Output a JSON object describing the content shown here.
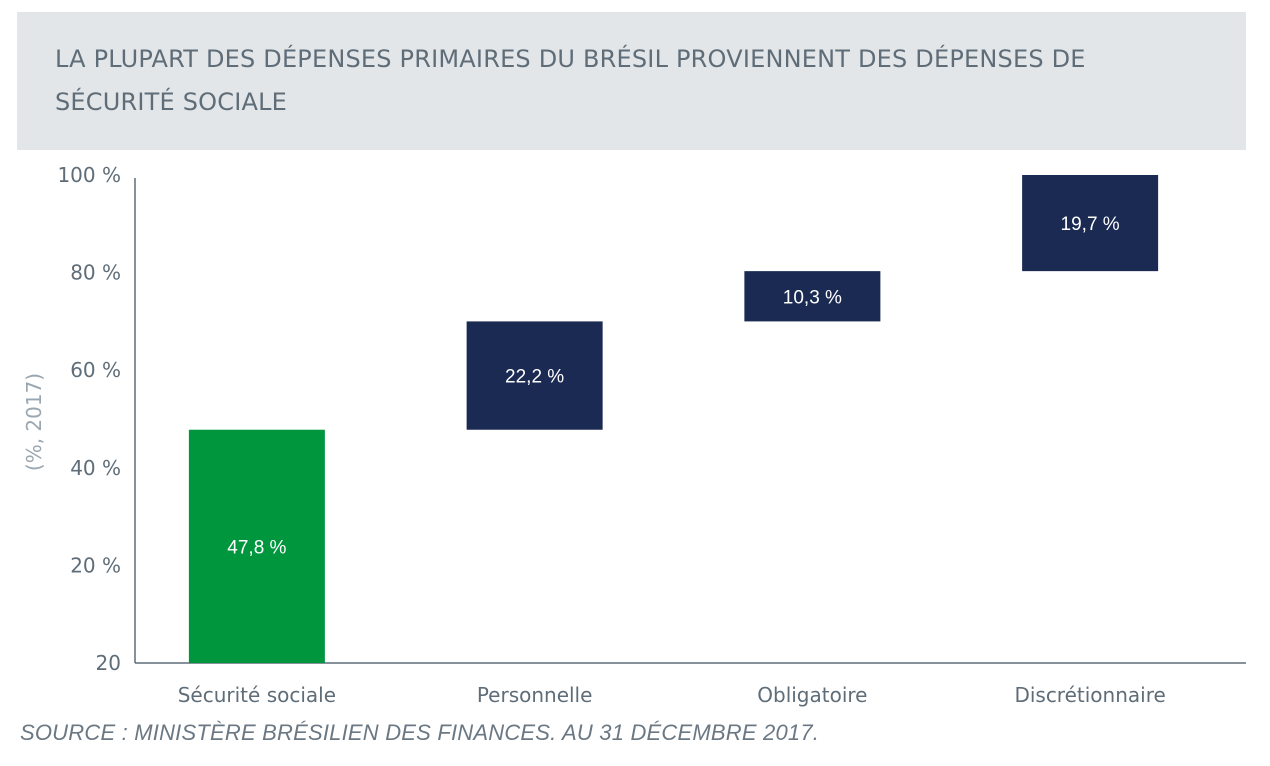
{
  "title": "LA PLUPART DES DÉPENSES PRIMAIRES DU BRÉSIL PROVIENNENT DES DÉPENSES DE SÉCURITÉ SOCIALE",
  "source": "SOURCE : MINISTÈRE BRÉSILIEN DES FINANCES. AU 31 DÉCEMBRE 2017.",
  "colors": {
    "first_bar": "#00963d",
    "other_bars": "#1a2a52",
    "axis": "#5f6d78"
  },
  "chart_data": {
    "type": "bar",
    "subtype": "waterfall",
    "ylabel": "(%, 2017)",
    "ylim": [
      0,
      100
    ],
    "tick_labels": [
      "20",
      "20 %",
      "40 %",
      "60 %",
      "80 %",
      "100 %"
    ],
    "categories": [
      "Sécurité sociale",
      "Personnelle",
      "Obligatoire",
      "Discrétionnaire"
    ],
    "values": [
      47.8,
      22.2,
      10.3,
      19.7
    ],
    "data_labels": [
      "47,8 %",
      "22,2 %",
      "10,3 %",
      "19,7 %"
    ],
    "grid": false,
    "legend": "none"
  }
}
